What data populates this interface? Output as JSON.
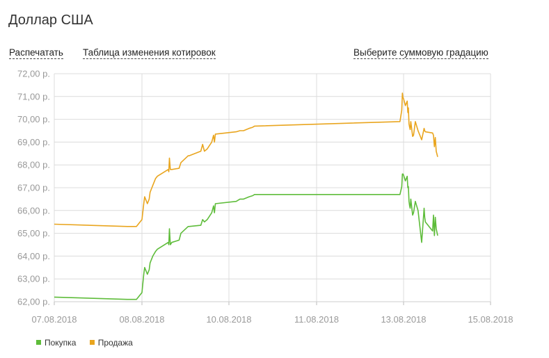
{
  "page": {
    "title": "Доллар США"
  },
  "links": {
    "print": "Распечатать",
    "table": "Таблица изменения котировок",
    "scale": "Выберите суммовую градацию"
  },
  "colors": {
    "buy": "#5ebc3a",
    "sell": "#e9a51e",
    "grid": "#dcdcdc",
    "tick": "#999999"
  },
  "chart_data": {
    "type": "line",
    "title": "",
    "xlabel": "",
    "ylabel": "",
    "ylim": [
      62,
      72
    ],
    "xlim": [
      "2018-08-07",
      "2018-08-15"
    ],
    "grid": true,
    "legend_position": "bottom-left",
    "y_ticks": [
      "62,00 р.",
      "63,00 р.",
      "64,00 р.",
      "65,00 р.",
      "66,00 р.",
      "67,00 р.",
      "68,00 р.",
      "69,00 р.",
      "70,00 р.",
      "71,00 р.",
      "72,00 р."
    ],
    "x_ticks": [
      "07.08.2018",
      "08.08.2018",
      "10.08.2018",
      "11.08.2018",
      "13.08.2018",
      "15.08.2018"
    ],
    "series": [
      {
        "name": "Покупка",
        "key": "buy",
        "x": [
          "2018-08-07 00:00",
          "2018-08-07 20:00",
          "2018-08-07 22:30",
          "2018-08-08 00:00",
          "2018-08-08 01:00",
          "2018-08-08 01:30",
          "2018-08-08 03:00",
          "2018-08-08 04:00",
          "2018-08-08 04:30",
          "2018-08-08 05:30",
          "2018-08-08 06:00",
          "2018-08-08 07:30",
          "2018-08-08 08:30",
          "2018-08-08 14:30",
          "2018-08-08 14:50",
          "2018-08-08 15:10",
          "2018-08-08 15:40",
          "2018-08-08 16:30",
          "2018-08-08 20:30",
          "2018-08-08 21:30",
          "2018-08-09 01:30",
          "2018-08-09 02:00",
          "2018-08-09 08:30",
          "2018-08-09 09:30",
          "2018-08-09 10:30",
          "2018-08-09 12:00",
          "2018-08-09 14:30",
          "2018-08-09 15:30",
          "2018-08-09 16:00",
          "2018-08-09 16:30",
          "2018-08-10 02:00",
          "2018-08-10 03:00",
          "2018-08-10 04:00",
          "2018-08-10 05:30",
          "2018-08-10 06:30",
          "2018-08-10 07:00",
          "2018-08-12 22:00",
          "2018-08-12 23:00",
          "2018-08-12 23:20",
          "2018-08-12 23:40",
          "2018-08-13 00:00",
          "2018-08-13 01:00",
          "2018-08-13 02:00",
          "2018-08-13 02:20",
          "2018-08-13 02:40",
          "2018-08-13 03:00",
          "2018-08-13 03:20",
          "2018-08-13 03:40",
          "2018-08-13 04:00",
          "2018-08-13 05:00",
          "2018-08-13 05:30",
          "2018-08-13 06:30",
          "2018-08-13 08:00",
          "2018-08-13 10:00",
          "2018-08-13 11:20",
          "2018-08-13 11:40",
          "2018-08-13 12:00",
          "2018-08-13 16:00",
          "2018-08-13 16:30",
          "2018-08-13 17:00",
          "2018-08-13 17:30",
          "2018-08-13 18:00",
          "2018-08-13 18:50"
        ],
        "values": [
          62.2,
          62.1,
          62.1,
          62.4,
          63.2,
          63.5,
          63.2,
          63.4,
          63.7,
          63.9,
          64.0,
          64.2,
          64.3,
          64.6,
          64.5,
          65.2,
          64.5,
          64.6,
          64.7,
          65.0,
          65.3,
          65.3,
          65.35,
          65.6,
          65.5,
          65.6,
          65.9,
          66.2,
          65.9,
          66.3,
          66.4,
          66.5,
          66.5,
          66.6,
          66.65,
          66.7,
          66.7,
          67.05,
          67.6,
          67.6,
          67.55,
          67.3,
          67.5,
          67.0,
          67.05,
          66.4,
          66.2,
          66.1,
          66.5,
          65.8,
          65.9,
          66.4,
          66.0,
          64.6,
          66.1,
          65.7,
          65.5,
          65.1,
          65.8,
          64.9,
          65.7,
          65.2,
          64.9
        ]
      },
      {
        "name": "Продажа",
        "key": "sell",
        "x": [
          "2018-08-07 00:00",
          "2018-08-07 20:00",
          "2018-08-07 22:30",
          "2018-08-08 00:00",
          "2018-08-08 01:00",
          "2018-08-08 01:30",
          "2018-08-08 03:00",
          "2018-08-08 04:00",
          "2018-08-08 04:30",
          "2018-08-08 05:30",
          "2018-08-08 06:00",
          "2018-08-08 07:30",
          "2018-08-08 08:30",
          "2018-08-08 14:30",
          "2018-08-08 14:50",
          "2018-08-08 15:10",
          "2018-08-08 15:40",
          "2018-08-08 16:30",
          "2018-08-08 20:30",
          "2018-08-08 21:30",
          "2018-08-09 01:30",
          "2018-08-09 02:00",
          "2018-08-09 08:30",
          "2018-08-09 09:30",
          "2018-08-09 10:30",
          "2018-08-09 12:00",
          "2018-08-09 14:30",
          "2018-08-09 15:30",
          "2018-08-09 16:00",
          "2018-08-09 16:30",
          "2018-08-10 02:00",
          "2018-08-10 03:00",
          "2018-08-10 04:00",
          "2018-08-10 05:30",
          "2018-08-10 06:30",
          "2018-08-10 07:00",
          "2018-08-12 22:00",
          "2018-08-12 23:00",
          "2018-08-12 23:20",
          "2018-08-12 23:40",
          "2018-08-13 00:00",
          "2018-08-13 01:00",
          "2018-08-13 02:00",
          "2018-08-13 02:20",
          "2018-08-13 02:40",
          "2018-08-13 03:00",
          "2018-08-13 03:20",
          "2018-08-13 03:40",
          "2018-08-13 04:00",
          "2018-08-13 05:00",
          "2018-08-13 05:30",
          "2018-08-13 06:30",
          "2018-08-13 08:00",
          "2018-08-13 10:00",
          "2018-08-13 11:20",
          "2018-08-13 11:40",
          "2018-08-13 12:00",
          "2018-08-13 16:00",
          "2018-08-13 16:30",
          "2018-08-13 17:00",
          "2018-08-13 17:30",
          "2018-08-13 18:00",
          "2018-08-13 18:50"
        ],
        "values": [
          65.4,
          65.3,
          65.3,
          65.6,
          66.3,
          66.6,
          66.3,
          66.5,
          66.8,
          67.0,
          67.1,
          67.4,
          67.5,
          67.8,
          67.7,
          68.3,
          67.8,
          67.8,
          67.85,
          68.1,
          68.4,
          68.4,
          68.6,
          68.9,
          68.6,
          68.7,
          69.0,
          69.3,
          69.0,
          69.35,
          69.45,
          69.5,
          69.5,
          69.6,
          69.65,
          69.7,
          69.9,
          70.4,
          71.15,
          70.95,
          70.9,
          70.6,
          70.8,
          70.3,
          70.5,
          69.8,
          69.65,
          69.55,
          69.9,
          69.25,
          69.3,
          69.9,
          69.5,
          69.1,
          69.6,
          69.5,
          69.45,
          69.4,
          69.3,
          68.8,
          69.2,
          68.6,
          68.35
        ]
      }
    ]
  }
}
